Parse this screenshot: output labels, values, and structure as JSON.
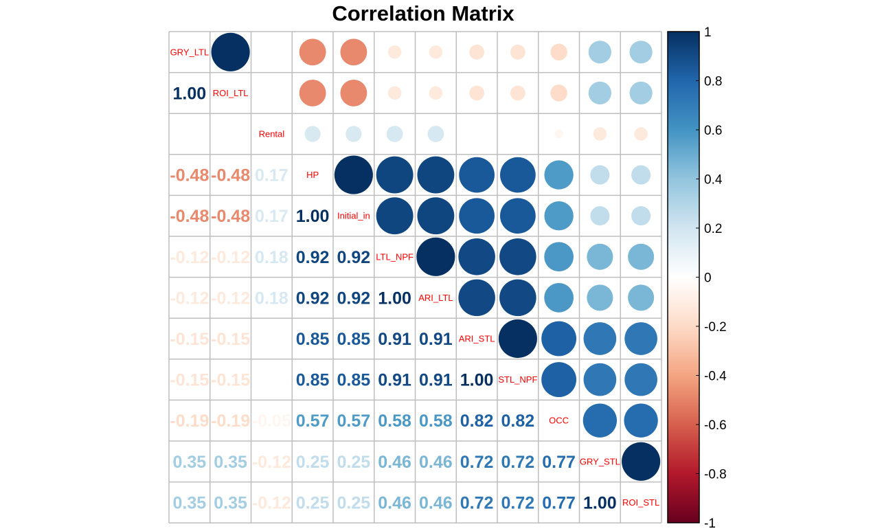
{
  "chart_data": {
    "type": "heatmap",
    "title": "Correlation Matrix",
    "variables": [
      "GRY_LTL",
      "ROI_LTL",
      "Rental",
      "HP",
      "Initial_in",
      "LTL_NPF",
      "ARI_LTL",
      "ARI_STL",
      "STL_NPF",
      "OCC",
      "GRY_STL",
      "ROI_STL"
    ],
    "matrix": [
      [
        1.0,
        1.0,
        0.0,
        -0.48,
        -0.48,
        -0.12,
        -0.12,
        -0.15,
        -0.15,
        -0.19,
        0.35,
        0.35
      ],
      [
        1.0,
        1.0,
        0.0,
        -0.48,
        -0.48,
        -0.12,
        -0.12,
        -0.15,
        -0.15,
        -0.19,
        0.35,
        0.35
      ],
      [
        0.0,
        0.0,
        1.0,
        0.17,
        0.17,
        0.18,
        0.18,
        0.0,
        0.0,
        -0.05,
        -0.12,
        -0.12
      ],
      [
        -0.48,
        -0.48,
        0.17,
        1.0,
        1.0,
        0.92,
        0.92,
        0.85,
        0.85,
        0.57,
        0.25,
        0.25
      ],
      [
        -0.48,
        -0.48,
        0.17,
        1.0,
        1.0,
        0.92,
        0.92,
        0.85,
        0.85,
        0.57,
        0.25,
        0.25
      ],
      [
        -0.12,
        -0.12,
        0.18,
        0.92,
        0.92,
        1.0,
        1.0,
        0.91,
        0.91,
        0.58,
        0.46,
        0.46
      ],
      [
        -0.12,
        -0.12,
        0.18,
        0.92,
        0.92,
        1.0,
        1.0,
        0.91,
        0.91,
        0.58,
        0.46,
        0.46
      ],
      [
        -0.15,
        -0.15,
        0.0,
        0.85,
        0.85,
        0.91,
        0.91,
        1.0,
        1.0,
        0.82,
        0.72,
        0.72
      ],
      [
        -0.15,
        -0.15,
        0.0,
        0.85,
        0.85,
        0.91,
        0.91,
        1.0,
        1.0,
        0.82,
        0.72,
        0.72
      ],
      [
        -0.19,
        -0.19,
        -0.05,
        0.57,
        0.57,
        0.58,
        0.58,
        0.82,
        0.82,
        1.0,
        0.77,
        0.77
      ],
      [
        0.35,
        0.35,
        -0.12,
        0.25,
        0.25,
        0.46,
        0.46,
        0.72,
        0.72,
        0.77,
        1.0,
        1.0
      ],
      [
        0.35,
        0.35,
        -0.12,
        0.25,
        0.25,
        0.46,
        0.46,
        0.72,
        0.72,
        0.77,
        1.0,
        1.0
      ]
    ],
    "upper_method": "circle",
    "lower_method": "number",
    "diagonal": "variable labels",
    "number_format": "2 decimals",
    "color_scale": {
      "min": -1,
      "max": 1,
      "ticks": [
        "-1",
        "-0.8",
        "-0.6",
        "-0.4",
        "-0.2",
        "0",
        "0.2",
        "0.4",
        "0.6",
        "0.8",
        "1"
      ],
      "stops": [
        "#67001F",
        "#B2182B",
        "#D6604D",
        "#F4A582",
        "#FDDBC7",
        "#FFFFFF",
        "#D1E5F0",
        "#92C5DE",
        "#4393C3",
        "#2166AC",
        "#053061"
      ]
    },
    "legend_placement": "right",
    "grid": true,
    "grid_color": "#bebebe",
    "label_color": "#ff0000"
  }
}
